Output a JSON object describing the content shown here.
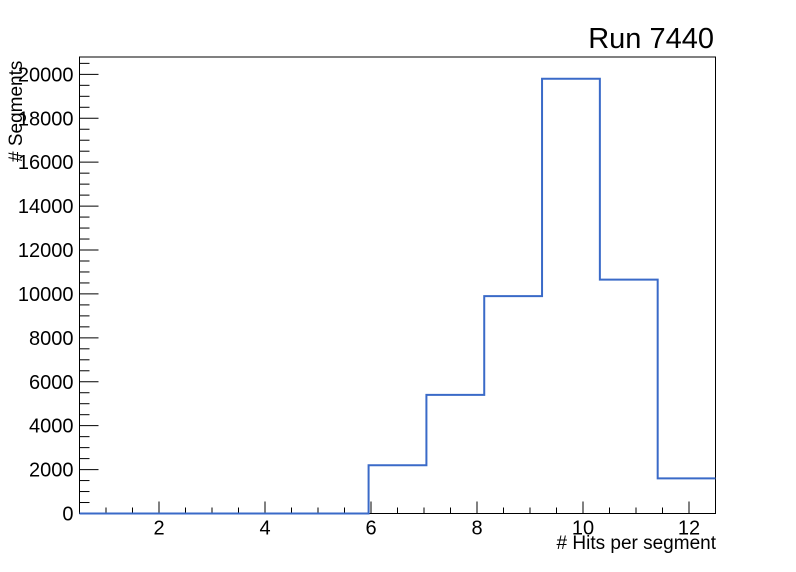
{
  "page": {
    "background_color": "#ffffff",
    "text_color": "#000000"
  },
  "chart_data": {
    "type": "bar",
    "subtype": "step-histogram",
    "title": "Run 7440",
    "xlabel": "# Hits per segment",
    "ylabel": "# Segments",
    "xlim": [
      0.5,
      12.5
    ],
    "ylim": [
      0,
      20790
    ],
    "n_bins": 11,
    "bin_width": 1.0909,
    "bin_edges": [
      0.5,
      1.5909,
      2.6818,
      3.7727,
      4.8636,
      5.9545,
      7.0455,
      8.1364,
      9.2273,
      10.3182,
      11.4091,
      12.5
    ],
    "counts": [
      0,
      0,
      0,
      0,
      0,
      2200,
      5400,
      9900,
      19800,
      10650,
      1600
    ],
    "x_major_ticks": [
      2,
      4,
      6,
      8,
      10,
      12
    ],
    "x_major_tick_labels": [
      "2",
      "4",
      "6",
      "8",
      "10",
      "12"
    ],
    "x_minor_tick_step": 0.5,
    "y_major_ticks": [
      0,
      2000,
      4000,
      6000,
      8000,
      10000,
      12000,
      14000,
      16000,
      18000,
      20000
    ],
    "y_major_tick_labels": [
      "0",
      "2000",
      "4000",
      "6000",
      "8000",
      "10000",
      "12000",
      "14000",
      "16000",
      "18000",
      "20000"
    ],
    "y_minor_tick_step": 500,
    "grid": false,
    "legend": null,
    "line_color": "#3a6ac8",
    "frame_color": "#000000",
    "tick_label_color": "#000000"
  }
}
